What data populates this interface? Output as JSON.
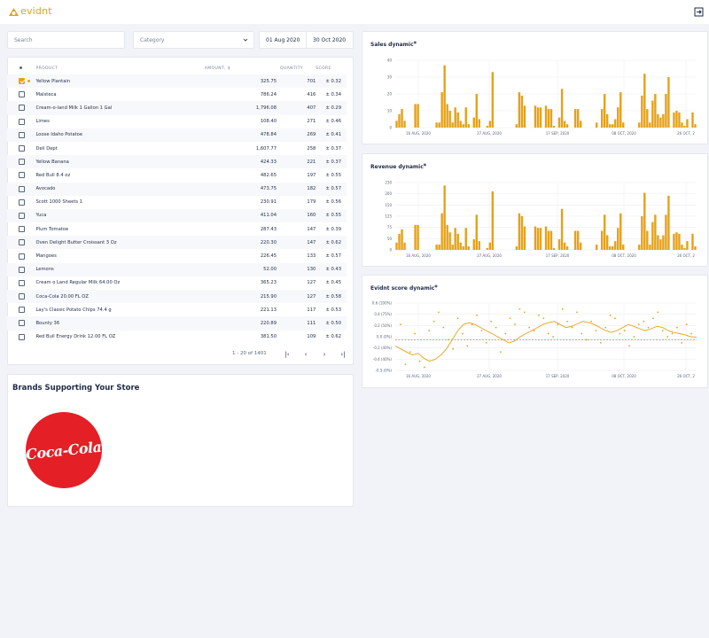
{
  "app": {
    "logo_text": "evidnt",
    "accent": "#e6a11a"
  },
  "filters": {
    "search_placeholder": "Search",
    "category_placeholder": "Category",
    "date_from": "01 Aug 2020",
    "date_to": "30 Oct 2020"
  },
  "table": {
    "headers": {
      "product": "PRODUCT",
      "amount": "AMOUNT, $",
      "quantity": "QUANTITY",
      "score": "SCORE"
    },
    "rows": [
      {
        "product": "Yellow Plantain",
        "amount": "325.75",
        "quantity": "701",
        "score": "± 0.32",
        "checked": true
      },
      {
        "product": "Malsteca",
        "amount": "786.24",
        "quantity": "416",
        "score": "± 0.34"
      },
      {
        "product": "Cream-o-land Milk 1 Gallon 1 Gal",
        "amount": "1,796.08",
        "quantity": "407",
        "score": "± 0.29"
      },
      {
        "product": "Limes",
        "amount": "108.40",
        "quantity": "271",
        "score": "± 0.46"
      },
      {
        "product": "Loose Idaho Potatoe",
        "amount": "478.84",
        "quantity": "269",
        "score": "± 0.41"
      },
      {
        "product": "Deli Dept",
        "amount": "1,607.77",
        "quantity": "258",
        "score": "± 0.37"
      },
      {
        "product": "Yellow Banana",
        "amount": "424.33",
        "quantity": "221",
        "score": "± 0.37"
      },
      {
        "product": "Red Bull 8.4 oz",
        "amount": "482.65",
        "quantity": "197",
        "score": "± 0.55"
      },
      {
        "product": "Avocado",
        "amount": "473.75",
        "quantity": "182",
        "score": "± 0.57"
      },
      {
        "product": "Scott 1000 Sheets 1",
        "amount": "230.91",
        "quantity": "179",
        "score": "± 0.56"
      },
      {
        "product": "Yuca",
        "amount": "411.04",
        "quantity": "160",
        "score": "± 0.55"
      },
      {
        "product": "Plum Tomatoe",
        "amount": "287.43",
        "quantity": "147",
        "score": "± 0.39"
      },
      {
        "product": "Oven Delight Butter Croissant 3 Oz",
        "amount": "220.30",
        "quantity": "147",
        "score": "± 0.62"
      },
      {
        "product": "Mangoes",
        "amount": "226.45",
        "quantity": "133",
        "score": "± 0.57"
      },
      {
        "product": "Lemons",
        "amount": "52.00",
        "quantity": "130",
        "score": "± 0.43"
      },
      {
        "product": "Cream o Land Regular Milk 64.00 Oz",
        "amount": "365.23",
        "quantity": "127",
        "score": "± 0.45"
      },
      {
        "product": "Coca-Cola 20.00 FL OZ",
        "amount": "215.90",
        "quantity": "127",
        "score": "± 0.58"
      },
      {
        "product": "Lay's Classic Potato Chips 74.4 g",
        "amount": "221.13",
        "quantity": "117",
        "score": "± 0.53"
      },
      {
        "product": "Bounty 36",
        "amount": "220.89",
        "quantity": "111",
        "score": "± 0.50"
      },
      {
        "product": "Red Bull Energy Drink 12.00 FL OZ",
        "amount": "381.50",
        "quantity": "109",
        "score": "± 0.62"
      }
    ],
    "pagination": "1 - 20 of 1401"
  },
  "brands": {
    "title": "Brands Supporting Your Store",
    "logo_text": "Coca-Cola"
  },
  "chart_data": [
    {
      "type": "bar",
      "title": "Sales dynamic",
      "xticks": [
        "16 AUG, 2020",
        "27 AUG, 2020",
        "17 SEP, 2020",
        "08 OCT, 2020",
        "26 OCT, 2"
      ],
      "ylim": [
        0,
        40
      ],
      "yticks": [
        0,
        10,
        20,
        30,
        40
      ],
      "values": [
        4,
        8,
        11,
        4,
        0,
        0,
        0,
        14,
        14,
        0,
        0,
        0,
        0,
        0,
        0,
        3,
        3,
        21,
        37,
        14,
        10,
        3,
        12,
        9,
        4,
        2,
        12,
        2,
        0,
        6,
        20,
        5,
        0,
        0,
        1,
        4,
        33,
        0,
        0,
        0,
        0,
        0,
        0,
        0,
        0,
        2,
        21,
        19,
        13,
        0,
        0,
        0,
        13,
        12,
        12,
        0,
        13,
        11,
        11,
        1,
        0,
        6,
        23,
        4,
        2,
        0,
        0,
        11,
        11,
        4,
        0,
        0,
        0,
        0,
        0,
        3,
        0,
        11,
        20,
        8,
        2,
        2,
        5,
        12,
        21,
        3,
        0,
        0,
        0,
        0,
        0,
        3,
        19,
        32,
        11,
        3,
        16,
        20,
        8,
        6,
        8,
        20,
        30,
        0,
        9,
        10,
        9,
        3,
        1,
        5,
        0,
        9,
        2
      ],
      "grid": true
    },
    {
      "type": "bar",
      "title": "Revenue dynamic",
      "xticks": [
        "16 AUG, 2020",
        "27 AUG, 2020",
        "17 SEP, 2020",
        "08 OCT, 2020",
        "26 OCT, 2"
      ],
      "ylim": [
        0,
        230
      ],
      "yticks": [
        0,
        50,
        75,
        125,
        150,
        200,
        230
      ],
      "values": [
        25,
        55,
        70,
        25,
        0,
        0,
        0,
        85,
        85,
        0,
        0,
        0,
        0,
        0,
        0,
        18,
        18,
        125,
        220,
        85,
        60,
        18,
        75,
        55,
        25,
        12,
        75,
        12,
        0,
        36,
        120,
        30,
        0,
        0,
        6,
        25,
        200,
        0,
        0,
        0,
        0,
        0,
        0,
        0,
        0,
        12,
        125,
        115,
        80,
        0,
        0,
        0,
        80,
        75,
        75,
        0,
        80,
        65,
        65,
        6,
        0,
        36,
        140,
        25,
        12,
        0,
        0,
        65,
        65,
        25,
        0,
        0,
        0,
        0,
        0,
        18,
        0,
        65,
        120,
        50,
        12,
        12,
        30,
        75,
        125,
        18,
        0,
        0,
        0,
        0,
        0,
        18,
        115,
        195,
        65,
        18,
        95,
        120,
        50,
        36,
        50,
        120,
        185,
        0,
        55,
        60,
        55,
        18,
        6,
        30,
        0,
        55,
        12
      ],
      "grid": true
    },
    {
      "type": "line",
      "title": "Evidnt score dynamic",
      "xticks": [
        "16 AUG, 2020",
        "27 AUG, 2020",
        "17 SEP, 2020",
        "08 OCT, 2020",
        "26 OCT, 2"
      ],
      "yticks": [
        "0.6 (100%)",
        "0.4 (75%)",
        "0.2 (50%)",
        "0.0 (0%)",
        "-0.2 (40%)",
        "-0.4 (40%)",
        "-0.5 (0%)"
      ],
      "ylim": [
        -0.5,
        0.6
      ],
      "reference_line": 0.0,
      "line": [
        -0.1,
        -0.15,
        -0.2,
        -0.25,
        -0.22,
        -0.3,
        -0.35,
        -0.32,
        -0.25,
        -0.15,
        0.0,
        0.15,
        0.25,
        0.28,
        0.25,
        0.2,
        0.15,
        0.1,
        0.05,
        0.0,
        -0.05,
        -0.02,
        0.05,
        0.1,
        0.15,
        0.2,
        0.25,
        0.28,
        0.3,
        0.25,
        0.2,
        0.22,
        0.26,
        0.3,
        0.28,
        0.25,
        0.2,
        0.15,
        0.12,
        0.15,
        0.2,
        0.25,
        0.22,
        0.18,
        0.15,
        0.18,
        0.22,
        0.2,
        0.15,
        0.12,
        0.1,
        0.08,
        0.05,
        0.04
      ],
      "points": [
        0.25,
        -0.4,
        -0.2,
        0.1,
        -0.35,
        -0.45,
        0.15,
        0.3,
        0.45,
        0.2,
        0.0,
        -0.15,
        0.35,
        0.1,
        -0.1,
        0.25,
        0.4,
        0.15,
        -0.05,
        0.3,
        0.2,
        -0.2,
        0.1,
        0.35,
        0.25,
        0.5,
        0.45,
        0.2,
        0.15,
        0.4,
        0.35,
        0.1,
        0.05,
        0.25,
        0.5,
        0.3,
        0.2,
        0.45,
        0.1,
        0.0,
        0.3,
        0.15,
        -0.05,
        0.2,
        0.4,
        0.35,
        0.1,
        0.15,
        -0.1,
        0.05,
        0.25,
        0.3,
        0.2,
        0.35,
        0.45,
        0.15,
        0.05,
        0.1,
        0.2,
        -0.05,
        0.25,
        0.1
      ],
      "grid": true
    }
  ]
}
